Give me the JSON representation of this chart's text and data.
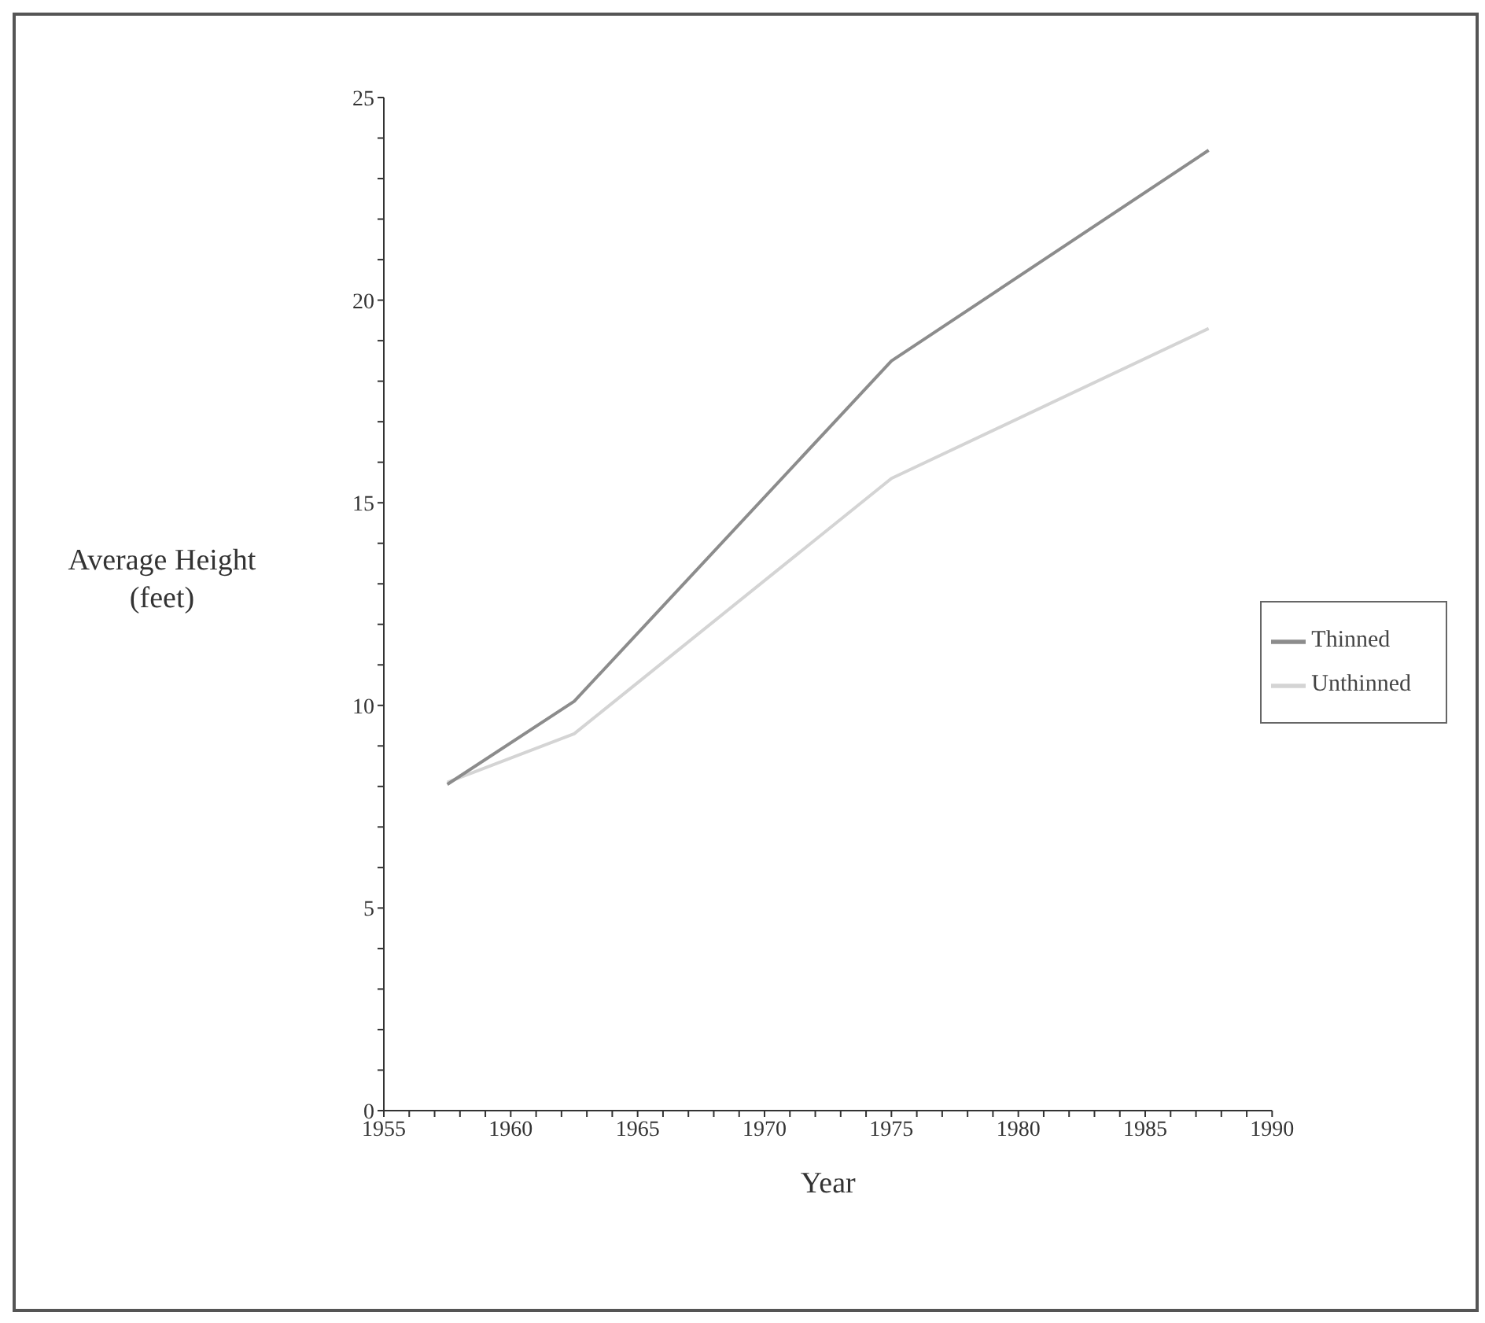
{
  "chart_data": {
    "type": "line",
    "xlabel": "Year",
    "ylabel": "Average Height\n(feet)",
    "x": [
      1957.5,
      1962.5,
      1975,
      1987.5
    ],
    "series": [
      {
        "name": "Unthinned",
        "color": "#d4d4d4",
        "values": [
          8.1,
          9.3,
          15.6,
          19.3
        ]
      },
      {
        "name": "Thinned",
        "color": "#8c8c8c",
        "values": [
          8.05,
          10.1,
          18.5,
          23.7
        ]
      }
    ],
    "xlim": [
      1955,
      1990
    ],
    "xticks": [
      1955,
      {
        "value": 1956,
        "label": null
      },
      {
        "value": 1957,
        "label": null
      },
      {
        "value": 1958,
        "label": null
      },
      {
        "value": 1959,
        "label": null
      },
      1960,
      {
        "value": 1961,
        "label": null
      },
      {
        "value": 1962,
        "label": null
      },
      {
        "value": 1963,
        "label": null
      },
      {
        "value": 1964,
        "label": null
      },
      1965,
      {
        "value": 1966,
        "label": null
      },
      {
        "value": 1967,
        "label": null
      },
      {
        "value": 1968,
        "label": null
      },
      {
        "value": 1969,
        "label": null
      },
      1970,
      {
        "value": 1971,
        "label": null
      },
      {
        "value": 1972,
        "label": null
      },
      {
        "value": 1973,
        "label": null
      },
      {
        "value": 1974,
        "label": null
      },
      1975,
      {
        "value": 1976,
        "label": null
      },
      {
        "value": 1977,
        "label": null
      },
      {
        "value": 1978,
        "label": null
      },
      {
        "value": 1979,
        "label": null
      },
      1980,
      {
        "value": 1981,
        "label": null
      },
      {
        "value": 1982,
        "label": null
      },
      {
        "value": 1983,
        "label": null
      },
      {
        "value": 1984,
        "label": null
      },
      1985,
      {
        "value": 1986,
        "label": null
      },
      {
        "value": 1987,
        "label": null
      },
      {
        "value": 1988,
        "label": null
      },
      {
        "value": 1989,
        "label": null
      },
      1990
    ],
    "ylim": [
      0,
      25
    ],
    "yticks": [
      0,
      {
        "value": 1,
        "label": null
      },
      {
        "value": 2,
        "label": null
      },
      {
        "value": 3,
        "label": null
      },
      {
        "value": 4,
        "label": null
      },
      5,
      {
        "value": 6,
        "label": null
      },
      {
        "value": 7,
        "label": null
      },
      {
        "value": 8,
        "label": null
      },
      {
        "value": 9,
        "label": null
      },
      10,
      {
        "value": 11,
        "label": null
      },
      {
        "value": 12,
        "label": null
      },
      {
        "value": 13,
        "label": null
      },
      {
        "value": 14,
        "label": null
      },
      15,
      {
        "value": 16,
        "label": null
      },
      {
        "value": 17,
        "label": null
      },
      {
        "value": 18,
        "label": null
      },
      {
        "value": 19,
        "label": null
      },
      20,
      {
        "value": 21,
        "label": null
      },
      {
        "value": 22,
        "label": null
      },
      {
        "value": 23,
        "label": null
      },
      {
        "value": 24,
        "label": null
      },
      25
    ],
    "legend": "right",
    "grid": false,
    "marker": "none",
    "line_style": "solid"
  }
}
